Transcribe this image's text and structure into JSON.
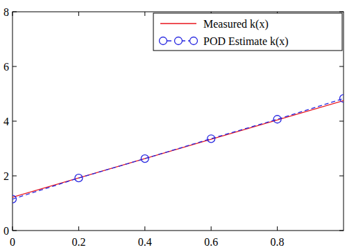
{
  "chart_data": {
    "type": "line",
    "xlim": [
      0,
      1
    ],
    "ylim": [
      0,
      8
    ],
    "xticks": [
      0,
      0.2,
      0.4,
      0.6,
      0.8
    ],
    "yticks": [
      0,
      2,
      4,
      6,
      8
    ],
    "grid": false,
    "legend": "upper right",
    "series": [
      {
        "name": "Measured k(x)",
        "color": "#e8141c",
        "marker": "none",
        "line_style": "solid",
        "x": [
          0,
          1
        ],
        "values": [
          1.22,
          4.75
        ]
      },
      {
        "name": "POD Estimate k(x)",
        "color": "#2626e0",
        "marker": "circle",
        "line_style": "dashed",
        "x": [
          0,
          0.2,
          0.4,
          0.6,
          0.8,
          1
        ],
        "values": [
          1.15,
          1.92,
          2.63,
          3.36,
          4.07,
          4.83
        ]
      }
    ]
  }
}
